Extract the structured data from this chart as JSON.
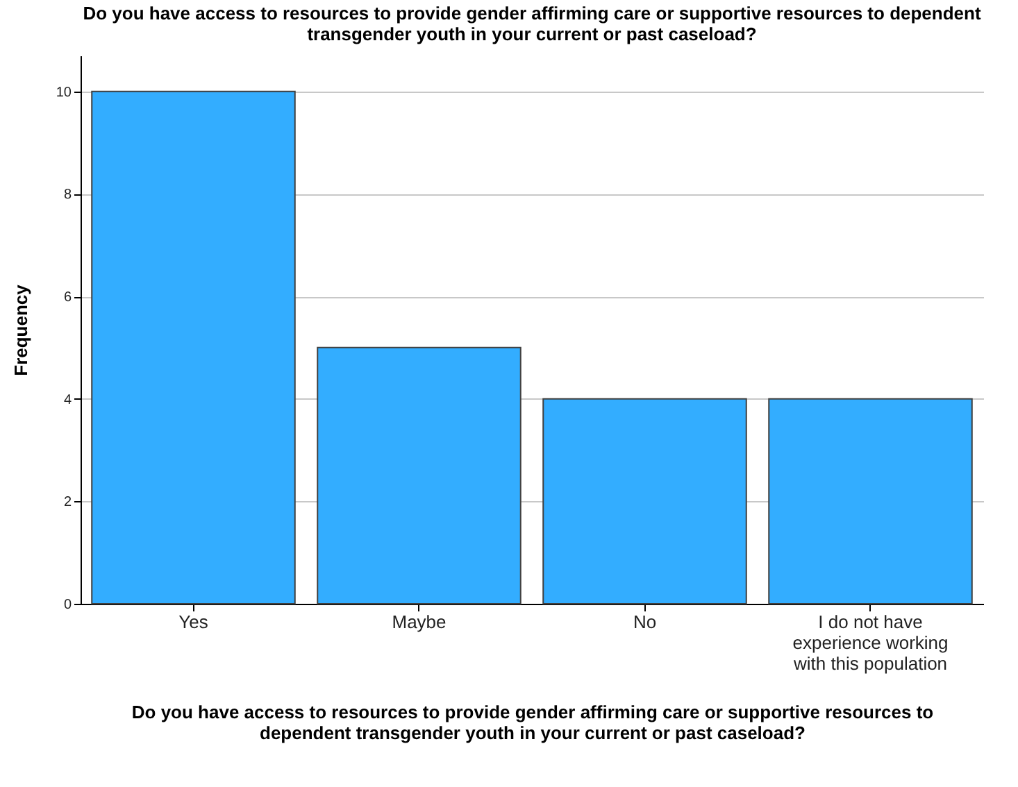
{
  "chart_data": {
    "type": "bar",
    "title": "Do you have access to resources to provide gender affirming care or supportive resources to dependent transgender youth in your current or past caseload?",
    "xlabel": "Do you have access to resources to provide gender affirming care or supportive resources to dependent transgender youth in your current or past caseload?",
    "ylabel": "Frequency",
    "categories": [
      "Yes",
      "Maybe",
      "No",
      "I do not have experience working with this population"
    ],
    "values": [
      10,
      5,
      4,
      4
    ],
    "color": "#33adff",
    "ylim": [
      0,
      10.7
    ],
    "yticks": [
      0,
      2,
      4,
      6,
      8,
      10
    ],
    "grid": "y"
  }
}
